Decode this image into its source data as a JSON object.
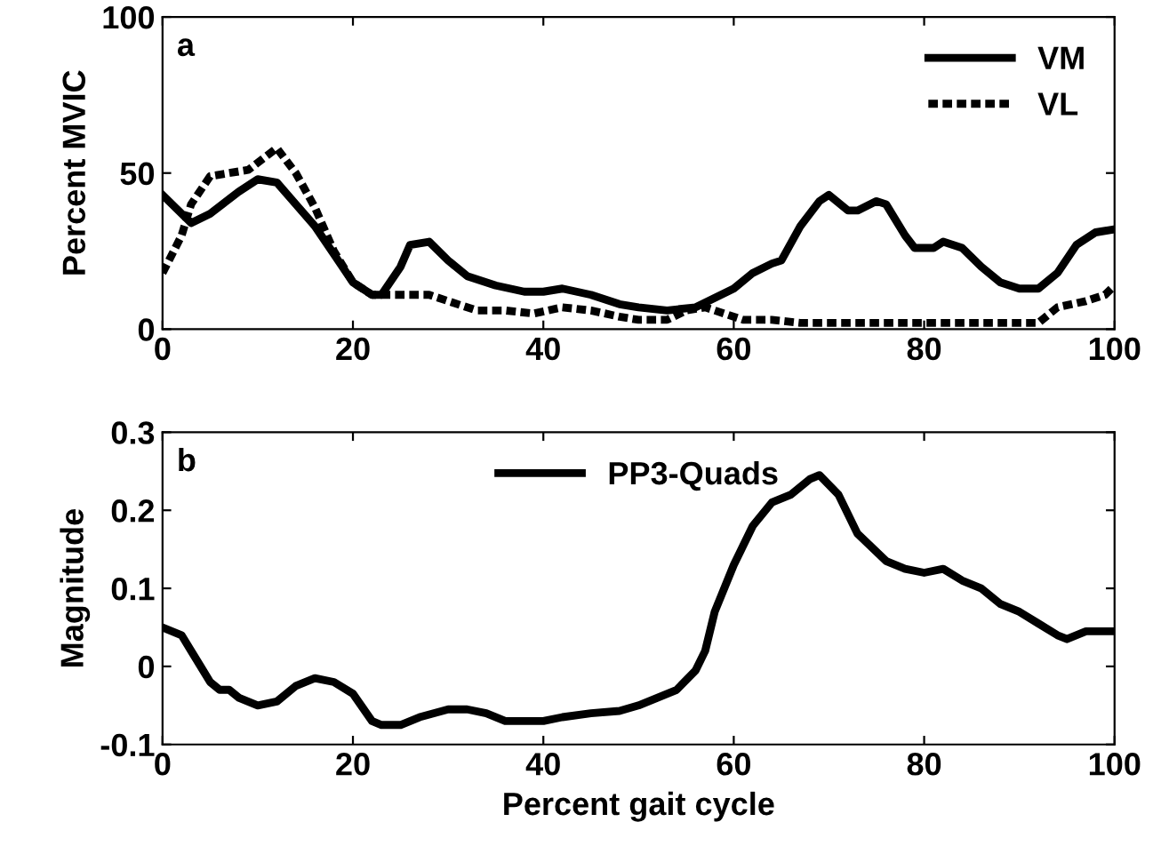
{
  "chart_data": [
    {
      "type": "line",
      "ylabel": "Percent MVIC",
      "annotations": [
        "a"
      ],
      "xlim": [
        0,
        100
      ],
      "xticks": [
        0,
        20,
        40,
        60,
        80,
        100
      ],
      "ylim": [
        0,
        100
      ],
      "yticks": [
        0,
        50,
        100
      ],
      "legend": "top right",
      "grid": false,
      "series": [
        {
          "name": "VM",
          "color": "#000000",
          "line_style": "solid",
          "x": [
            0,
            3,
            5,
            8,
            10,
            12,
            14,
            16,
            18,
            20,
            22,
            23,
            25,
            26,
            28,
            30,
            32,
            35,
            38,
            40,
            42,
            45,
            48,
            50,
            53,
            56,
            58,
            60,
            62,
            64,
            65,
            67,
            69,
            70,
            72,
            73,
            75,
            76,
            78,
            79,
            81,
            82,
            84,
            86,
            88,
            90,
            92,
            94,
            96,
            98,
            100
          ],
          "values": [
            43,
            34,
            37,
            44,
            48,
            47,
            40,
            33,
            24,
            15,
            11,
            11,
            20,
            27,
            28,
            22,
            17,
            14,
            12,
            12,
            13,
            11,
            8,
            7,
            6,
            7,
            10,
            13,
            18,
            21,
            22,
            33,
            41,
            43,
            38,
            38,
            41,
            40,
            30,
            26,
            26,
            28,
            26,
            20,
            15,
            13,
            13,
            18,
            27,
            31,
            32
          ]
        },
        {
          "name": "VL",
          "color": "#000000",
          "line_style": "dotted",
          "x": [
            0,
            2,
            3,
            5,
            7,
            9,
            12,
            14,
            16,
            18,
            20,
            22,
            24,
            26,
            28,
            30,
            33,
            36,
            39,
            42,
            45,
            48,
            50,
            53,
            55,
            57,
            59,
            61,
            64,
            67,
            70,
            80,
            90,
            92,
            94,
            97,
            99,
            100
          ],
          "values": [
            18,
            30,
            40,
            49,
            50,
            51,
            58,
            50,
            39,
            25,
            15,
            11,
            11,
            11,
            11,
            9,
            6,
            6,
            5,
            7,
            6,
            4,
            3,
            3,
            6,
            7,
            5,
            3,
            3,
            2,
            2,
            2,
            2,
            2,
            7,
            9,
            11,
            14
          ]
        }
      ]
    },
    {
      "type": "line",
      "xlabel": "Percent gait cycle",
      "ylabel": "Magnitude",
      "annotations": [
        "b"
      ],
      "xlim": [
        0,
        100
      ],
      "xticks": [
        0,
        20,
        40,
        60,
        80,
        100
      ],
      "ylim": [
        -0.1,
        0.3
      ],
      "yticks": [
        {
          "value": -0.1,
          "label": "-0.1"
        },
        0,
        0.1,
        0.2,
        0.3
      ],
      "legend": "top",
      "grid": false,
      "series": [
        {
          "name": "PP3-Quads",
          "color": "#000000",
          "line_style": "solid",
          "x": [
            0,
            2,
            3,
            4,
            5,
            6,
            7,
            8,
            10,
            12,
            14,
            16,
            18,
            20,
            22,
            23,
            25,
            27,
            30,
            32,
            34,
            36,
            40,
            42,
            45,
            48,
            50,
            52,
            54,
            56,
            57,
            58,
            60,
            62,
            64,
            66,
            68,
            69,
            71,
            73,
            76,
            78,
            80,
            82,
            84,
            86,
            88,
            90,
            92,
            94,
            95,
            97,
            100
          ],
          "values": [
            0.05,
            0.04,
            0.02,
            0.0,
            -0.02,
            -0.03,
            -0.03,
            -0.04,
            -0.05,
            -0.045,
            -0.025,
            -0.015,
            -0.02,
            -0.035,
            -0.07,
            -0.075,
            -0.075,
            -0.065,
            -0.055,
            -0.055,
            -0.06,
            -0.07,
            -0.07,
            -0.065,
            -0.06,
            -0.057,
            -0.05,
            -0.04,
            -0.03,
            -0.005,
            0.02,
            0.07,
            0.13,
            0.18,
            0.21,
            0.22,
            0.24,
            0.245,
            0.22,
            0.17,
            0.135,
            0.125,
            0.12,
            0.125,
            0.11,
            0.1,
            0.08,
            0.07,
            0.055,
            0.04,
            0.035,
            0.045,
            0.045
          ]
        }
      ]
    }
  ]
}
